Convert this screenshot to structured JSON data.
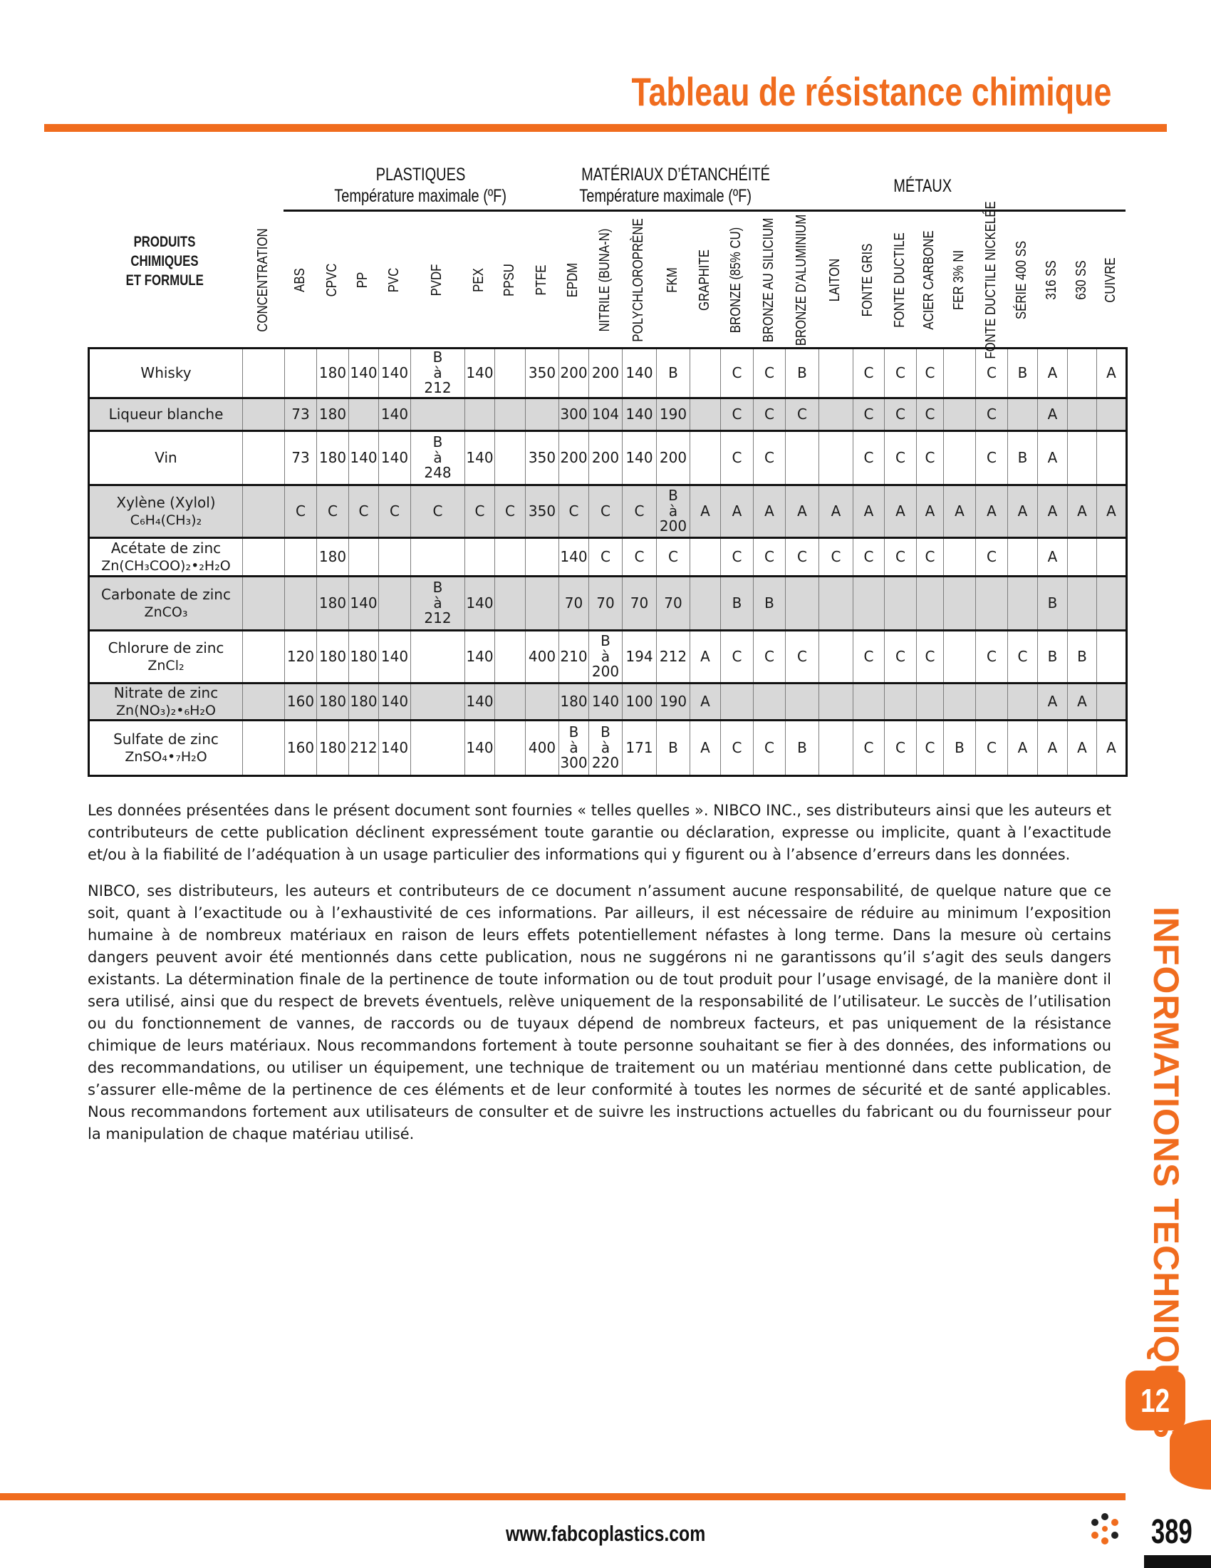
{
  "page": {
    "title": "Tableau de résistance chimique",
    "accent_color": "#f06c1e",
    "sidebar_text": "INFORMATIONS TECHNIQUES",
    "section_tab": "12",
    "page_number": "389",
    "footer_url": "www.fabcoplastics.com"
  },
  "table": {
    "row_header_line1": "PRODUITS CHIMIQUES",
    "row_header_line2": "ET FORMULE",
    "groups": [
      {
        "label": "PLASTIQUES",
        "sublabel": "Température maximale (ºF)"
      },
      {
        "label": "MATÉRIAUX D’ÉTANCHÉITÉ",
        "sublabel": "Température maximale (ºF)"
      },
      {
        "label": "MÉTAUX",
        "sublabel": ""
      }
    ],
    "columns": [
      "CONCENTRATION",
      "ABS",
      "CPVC",
      "PP",
      "PVC",
      "PVDF",
      "PEX",
      "PPSU",
      "PTFE",
      "EPDM",
      "NITRILE (BUNA-N)",
      "POLYCHLOROPRÈNE",
      "FKM",
      "GRAPHITE",
      "BRONZE  (85% CU)",
      "BRONZE AU SILICIUM",
      "BRONZE D'ALUMINIUM",
      "LAITON",
      "FONTE GRIS",
      "FONTE DUCTILE",
      "ACIER CARBONE",
      "FER 3% NI",
      "FONTE DUCTILE NICKELÉE",
      "SÉRIE 400 SS",
      "316 SS",
      "630 SS",
      "CUIVRE"
    ],
    "rows": [
      {
        "name": "Whisky",
        "formula": "",
        "values": [
          "",
          "",
          "180",
          "140",
          "140",
          "B à 212",
          "140",
          "",
          "350",
          "200",
          "200",
          "140",
          "B",
          "",
          "C",
          "C",
          "B",
          "",
          "C",
          "C",
          "C",
          "",
          "C",
          "B",
          "A",
          "",
          "A"
        ]
      },
      {
        "name": "Liqueur blanche",
        "formula": "",
        "values": [
          "",
          "73",
          "180",
          "",
          "140",
          "",
          "",
          "",
          "",
          "300",
          "104",
          "140",
          "190",
          "",
          "C",
          "C",
          "C",
          "",
          "C",
          "C",
          "C",
          "",
          "C",
          "",
          "A",
          "",
          ""
        ]
      },
      {
        "name": "Vin",
        "formula": "",
        "values": [
          "",
          "73",
          "180",
          "140",
          "140",
          "B à 248",
          "140",
          "",
          "350",
          "200",
          "200",
          "140",
          "200",
          "",
          "C",
          "C",
          "",
          "",
          "C",
          "C",
          "C",
          "",
          "C",
          "B",
          "A",
          "",
          ""
        ]
      },
      {
        "name": "Xylène (Xylol)",
        "formula": "C₆H₄(CH₃)₂",
        "values": [
          "",
          "C",
          "C",
          "C",
          "C",
          "C",
          "C",
          "C",
          "350",
          "C",
          "C",
          "C",
          "B à 200",
          "A",
          "A",
          "A",
          "A",
          "A",
          "A",
          "A",
          "A",
          "A",
          "A",
          "A",
          "A",
          "A",
          "A"
        ]
      },
      {
        "name": "Acétate de zinc",
        "formula": "Zn(CH₃COO)₂•₂H₂O",
        "values": [
          "",
          "",
          "180",
          "",
          "",
          "",
          "",
          "",
          "",
          "140",
          "C",
          "C",
          "C",
          "",
          "C",
          "C",
          "C",
          "C",
          "C",
          "C",
          "C",
          "",
          "C",
          "",
          "A",
          "",
          ""
        ]
      },
      {
        "name": "Carbonate de zinc",
        "formula": "ZnCO₃",
        "values": [
          "",
          "",
          "180",
          "140",
          "",
          "B à 212",
          "140",
          "",
          "",
          "70",
          "70",
          "70",
          "70",
          "",
          "B",
          "B",
          "",
          "",
          "",
          "",
          "",
          "",
          "",
          "",
          "B",
          "",
          ""
        ]
      },
      {
        "name": "Chlorure de zinc",
        "formula": "ZnCl₂",
        "values": [
          "",
          "120",
          "180",
          "180",
          "140",
          "",
          "140",
          "",
          "400",
          "210",
          "B à 200",
          "194",
          "212",
          "A",
          "C",
          "C",
          "C",
          "",
          "C",
          "C",
          "C",
          "",
          "C",
          "C",
          "B",
          "B",
          ""
        ]
      },
      {
        "name": "Nitrate de zinc",
        "formula": "Zn(NO₃)₂•₆H₂O",
        "values": [
          "",
          "160",
          "180",
          "180",
          "140",
          "",
          "140",
          "",
          "",
          "180",
          "140",
          "100",
          "190",
          "A",
          "",
          "",
          "",
          "",
          "",
          "",
          "",
          "",
          "",
          "",
          "A",
          "A",
          ""
        ]
      },
      {
        "name": "Sulfate de zinc",
        "formula": "ZnSO₄•₇H₂O",
        "values": [
          "",
          "160",
          "180",
          "212",
          "140",
          "",
          "140",
          "",
          "400",
          "B à 300",
          "B à 220",
          "171",
          "B",
          "A",
          "C",
          "C",
          "B",
          "",
          "C",
          "C",
          "C",
          "B",
          "C",
          "A",
          "A",
          "A",
          "A"
        ]
      }
    ]
  },
  "paragraphs": [
    "Les données présentées dans le présent document sont fournies « telles quelles ». NIBCO INC., ses distributeurs ainsi que les auteurs et contributeurs de cette publication déclinent expressément toute garantie ou déclaration, expresse ou implicite, quant à l’exactitude et/ou à la fiabilité de l’adéquation à un usage particulier des informations qui y figurent ou à l’absence d’erreurs dans les données.",
    "NIBCO, ses distributeurs, les auteurs et contributeurs de ce document n’assument aucune responsabilité, de quelque nature que ce soit, quant à l’exactitude ou à l’exhaustivité de ces informations. Par ailleurs, il est nécessaire de réduire au minimum l’exposition humaine à de nombreux matériaux en raison de leurs effets potentiellement néfastes à long terme. Dans la mesure où certains dangers peuvent avoir été mentionnés dans cette publication, nous ne suggérons ni ne garantissons qu’il s’agit des seuls dangers existants. La détermination finale de la pertinence de toute information ou de tout produit pour l’usage envisagé, de la manière dont il sera utilisé, ainsi que du respect de brevets éventuels, relève uniquement de la responsabilité de l’utilisateur. Le succès de l’utilisation ou du fonctionnement de vannes, de raccords ou de tuyaux dépend de nombreux facteurs, et pas uniquement de la résistance chimique de leurs matériaux. Nous recommandons fortement à toute personne souhaitant se fier à des données, des informations ou des recommandations, ou utiliser un équipement, une technique de traitement ou un matériau mentionné dans cette publication, de s’assurer elle-même de la pertinence de ces éléments et de leur conformité à toutes les normes de sécurité et de santé applicables. Nous recommandons fortement aux utilisateurs de consulter et de suivre les instructions actuelles du fabricant ou du fournisseur pour la manipulation de chaque matériau utilisé."
  ]
}
